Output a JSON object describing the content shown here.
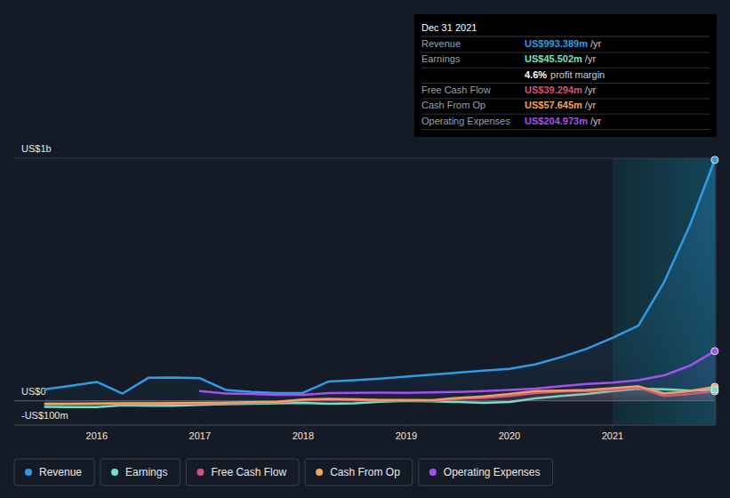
{
  "chart_data": {
    "type": "line",
    "x": [
      2015.5,
      2015.75,
      2016,
      2016.25,
      2016.5,
      2016.75,
      2017,
      2017.25,
      2017.5,
      2017.75,
      2018,
      2018.25,
      2018.5,
      2018.75,
      2019,
      2019.25,
      2019.5,
      2019.75,
      2020,
      2020.25,
      2020.5,
      2020.75,
      2021,
      2021.25,
      2021.5,
      2021.75,
      2021.99
    ],
    "xlim": [
      2015.2,
      2022
    ],
    "xticks": [
      2016,
      2017,
      2018,
      2019,
      2020,
      2021
    ],
    "ylim": [
      -100,
      1000
    ],
    "yticks": [
      {
        "value": -100,
        "label": "-US$100m"
      },
      {
        "value": 0,
        "label": "US$0"
      },
      {
        "value": 1000,
        "label": "US$1b"
      }
    ],
    "grid": true,
    "legend": "bottom",
    "series": [
      {
        "name": "Revenue",
        "color": "#2f9be6",
        "values": [
          48,
          62,
          78,
          30,
          95,
          96,
          93,
          45,
          37,
          32,
          33,
          80,
          85,
          92,
          100,
          108,
          116,
          125,
          132,
          150,
          180,
          215,
          260,
          310,
          490,
          725,
          993.389
        ]
      },
      {
        "name": "Earnings",
        "color": "#6fe3c9",
        "values": [
          -25,
          -26,
          -26,
          -18,
          -20,
          -20,
          -17,
          -14,
          -12,
          -10,
          -8,
          -12,
          -10,
          -4,
          0,
          -2,
          -5,
          -8,
          -5,
          10,
          20,
          28,
          40,
          50,
          48,
          42,
          45.502
        ]
      },
      {
        "name": "Free Cash Flow",
        "color": "#d2527f",
        "values": [
          -15,
          -14,
          -13,
          -12,
          -12,
          -11,
          -10,
          -9,
          -8,
          -6,
          2,
          5,
          3,
          2,
          2,
          0,
          8,
          12,
          20,
          32,
          38,
          40,
          45,
          55,
          20,
          28,
          39.294
        ]
      },
      {
        "name": "Cash From Op",
        "color": "#f0a45c",
        "values": [
          -12,
          -12,
          -11,
          -10,
          -10,
          -9,
          -8,
          -7,
          -6,
          -4,
          5,
          8,
          6,
          4,
          4,
          3,
          12,
          18,
          28,
          40,
          42,
          45,
          52,
          60,
          30,
          40,
          57.645
        ]
      },
      {
        "name": "Operating Expenses",
        "color": "#a352f0",
        "values": [
          null,
          null,
          null,
          null,
          null,
          null,
          40,
          30,
          28,
          25,
          25,
          32,
          33,
          34,
          33,
          35,
          37,
          40,
          45,
          50,
          60,
          70,
          75,
          85,
          105,
          145,
          204.973
        ]
      }
    ],
    "tooltip": {
      "date": "Dec 31 2021",
      "rows": [
        {
          "label": "Revenue",
          "value": "US$993.389m",
          "unit": "/yr"
        },
        {
          "label": "Earnings",
          "value": "US$45.502m",
          "unit": "/yr"
        },
        {
          "value": "4.6%",
          "unit": "profit margin"
        },
        {
          "label": "Free Cash Flow",
          "value": "US$39.294m",
          "unit": "/yr"
        },
        {
          "label": "Cash From Op",
          "value": "US$57.645m",
          "unit": "/yr"
        },
        {
          "label": "Operating Expenses",
          "value": "US$204.973m",
          "unit": "/yr"
        }
      ]
    }
  }
}
